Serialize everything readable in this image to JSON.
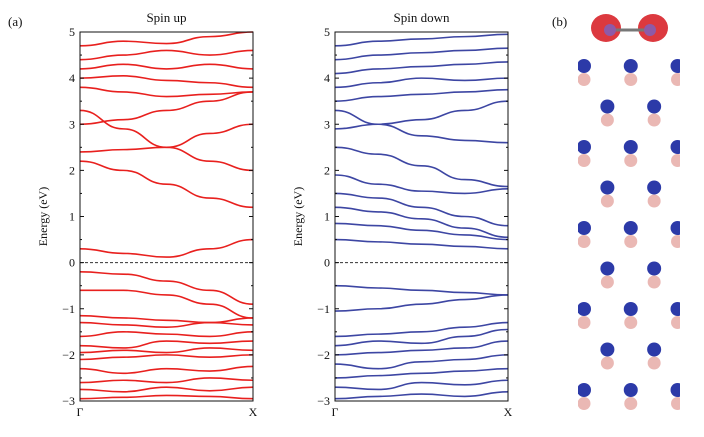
{
  "panel_labels": {
    "a": "(a)",
    "b": "(b)"
  },
  "colors": {
    "spin_up": "#e8201e",
    "spin_down": "#3d46a3",
    "fermi": "#333333",
    "atom_dark": "#2c3aa8",
    "atom_light": "#eab8b4",
    "bond": "#b9b4e0",
    "isosurface": "#d8232a",
    "adatom": "#8e5aa8"
  },
  "chart_data": [
    {
      "type": "line",
      "title": "Spin up",
      "ylabel": "Energy (eV)",
      "xlabel": "",
      "x_ticks": [
        "Γ",
        "X"
      ],
      "y_ticks": [
        "−3",
        "−2",
        "−1",
        "0",
        "1",
        "2",
        "3",
        "4",
        "5"
      ],
      "ylim": [
        -3,
        5
      ],
      "xlim": [
        0,
        1
      ],
      "fermi_level": 0,
      "grid": false,
      "series": [
        {
          "x": [
            0,
            0.25,
            0.5,
            0.75,
            1
          ],
          "y": [
            -2.95,
            -2.92,
            -2.88,
            -2.9,
            -2.95
          ]
        },
        {
          "x": [
            0,
            0.25,
            0.5,
            0.75,
            1
          ],
          "y": [
            -2.75,
            -2.8,
            -2.7,
            -2.78,
            -2.7
          ]
        },
        {
          "x": [
            0,
            0.25,
            0.5,
            0.75,
            1
          ],
          "y": [
            -2.6,
            -2.55,
            -2.6,
            -2.5,
            -2.55
          ]
        },
        {
          "x": [
            0,
            0.25,
            0.5,
            0.75,
            1
          ],
          "y": [
            -2.3,
            -2.4,
            -2.3,
            -2.35,
            -2.25
          ]
        },
        {
          "x": [
            0,
            0.25,
            0.5,
            0.75,
            1
          ],
          "y": [
            -2.1,
            -2.05,
            -2.0,
            -2.05,
            -2.0
          ]
        },
        {
          "x": [
            0,
            0.25,
            0.5,
            0.75,
            1
          ],
          "y": [
            -1.95,
            -1.9,
            -1.95,
            -1.85,
            -1.9
          ]
        },
        {
          "x": [
            0,
            0.25,
            0.5,
            0.75,
            1
          ],
          "y": [
            -1.8,
            -1.85,
            -1.7,
            -1.75,
            -1.7
          ]
        },
        {
          "x": [
            0,
            0.25,
            0.5,
            0.75,
            1
          ],
          "y": [
            -1.6,
            -1.5,
            -1.55,
            -1.6,
            -1.5
          ]
        },
        {
          "x": [
            0,
            0.25,
            0.5,
            0.75,
            1
          ],
          "y": [
            -1.3,
            -1.35,
            -1.4,
            -1.3,
            -1.35
          ]
        },
        {
          "x": [
            0,
            0.25,
            0.5,
            0.75,
            1
          ],
          "y": [
            -1.15,
            -1.2,
            -1.25,
            -1.3,
            -1.2
          ]
        },
        {
          "x": [
            0,
            0.25,
            0.5,
            0.75,
            1
          ],
          "y": [
            -0.6,
            -0.6,
            -0.7,
            -0.9,
            -1.2
          ]
        },
        {
          "x": [
            0,
            0.25,
            0.5,
            0.75,
            1
          ],
          "y": [
            -0.2,
            -0.25,
            -0.4,
            -0.6,
            -0.9
          ]
        },
        {
          "x": [
            0,
            0.25,
            0.5,
            0.75,
            1
          ],
          "y": [
            0.3,
            0.2,
            0.12,
            0.3,
            0.5
          ]
        },
        {
          "x": [
            0,
            0.25,
            0.5,
            0.75,
            1
          ],
          "y": [
            2.2,
            2.0,
            1.7,
            1.4,
            1.2
          ]
        },
        {
          "x": [
            0,
            0.25,
            0.5,
            0.75,
            1
          ],
          "y": [
            3.3,
            2.9,
            2.5,
            2.2,
            2.0
          ]
        },
        {
          "x": [
            0,
            0.25,
            0.5,
            0.75,
            1
          ],
          "y": [
            2.4,
            2.45,
            2.5,
            2.8,
            3.0
          ]
        },
        {
          "x": [
            0,
            0.25,
            0.5,
            0.75,
            1
          ],
          "y": [
            3.0,
            3.1,
            3.3,
            3.5,
            3.7
          ]
        },
        {
          "x": [
            0,
            0.25,
            0.5,
            0.75,
            1
          ],
          "y": [
            3.8,
            3.7,
            3.6,
            3.65,
            3.7
          ]
        },
        {
          "x": [
            0,
            0.25,
            0.5,
            0.75,
            1
          ],
          "y": [
            4.0,
            4.05,
            3.95,
            3.9,
            3.8
          ]
        },
        {
          "x": [
            0,
            0.25,
            0.5,
            0.75,
            1
          ],
          "y": [
            4.2,
            4.3,
            4.2,
            4.3,
            4.2
          ]
        },
        {
          "x": [
            0,
            0.25,
            0.5,
            0.75,
            1
          ],
          "y": [
            4.4,
            4.5,
            4.6,
            4.5,
            4.6
          ]
        },
        {
          "x": [
            0,
            0.25,
            0.5,
            0.75,
            1
          ],
          "y": [
            4.7,
            4.8,
            4.75,
            4.9,
            5.0
          ]
        }
      ]
    },
    {
      "type": "line",
      "title": "Spin down",
      "ylabel": "Energy (eV)",
      "xlabel": "",
      "x_ticks": [
        "Γ",
        "X"
      ],
      "y_ticks": [
        "−3",
        "−2",
        "−1",
        "0",
        "1",
        "2",
        "3",
        "4",
        "5"
      ],
      "ylim": [
        -3,
        5
      ],
      "xlim": [
        0,
        1
      ],
      "fermi_level": 0,
      "grid": false,
      "series": [
        {
          "x": [
            0,
            0.25,
            0.5,
            0.75,
            1
          ],
          "y": [
            -2.95,
            -2.9,
            -2.85,
            -2.9,
            -2.8
          ]
        },
        {
          "x": [
            0,
            0.25,
            0.5,
            0.75,
            1
          ],
          "y": [
            -2.7,
            -2.75,
            -2.6,
            -2.65,
            -2.55
          ]
        },
        {
          "x": [
            0,
            0.25,
            0.5,
            0.75,
            1
          ],
          "y": [
            -2.5,
            -2.45,
            -2.4,
            -2.35,
            -2.3
          ]
        },
        {
          "x": [
            0,
            0.25,
            0.5,
            0.75,
            1
          ],
          "y": [
            -2.2,
            -2.3,
            -2.15,
            -2.1,
            -2.0
          ]
        },
        {
          "x": [
            0,
            0.25,
            0.5,
            0.75,
            1
          ],
          "y": [
            -2.0,
            -1.95,
            -1.9,
            -1.85,
            -1.7
          ]
        },
        {
          "x": [
            0,
            0.25,
            0.5,
            0.75,
            1
          ],
          "y": [
            -1.8,
            -1.7,
            -1.75,
            -1.6,
            -1.45
          ]
        },
        {
          "x": [
            0,
            0.25,
            0.5,
            0.75,
            1
          ],
          "y": [
            -1.6,
            -1.55,
            -1.5,
            -1.4,
            -1.3
          ]
        },
        {
          "x": [
            0,
            0.25,
            0.5,
            0.75,
            1
          ],
          "y": [
            -1.05,
            -1.0,
            -0.9,
            -0.8,
            -0.7
          ]
        },
        {
          "x": [
            0,
            0.25,
            0.5,
            0.75,
            1
          ],
          "y": [
            -0.5,
            -0.55,
            -0.6,
            -0.65,
            -0.7
          ]
        },
        {
          "x": [
            0,
            0.25,
            0.5,
            0.75,
            1
          ],
          "y": [
            0.5,
            0.45,
            0.4,
            0.35,
            0.3
          ]
        },
        {
          "x": [
            0,
            0.25,
            0.5,
            0.75,
            1
          ],
          "y": [
            0.85,
            0.8,
            0.7,
            0.6,
            0.5
          ]
        },
        {
          "x": [
            0,
            0.25,
            0.5,
            0.75,
            1
          ],
          "y": [
            1.2,
            1.1,
            0.95,
            0.75,
            0.55
          ]
        },
        {
          "x": [
            0,
            0.25,
            0.5,
            0.75,
            1
          ],
          "y": [
            1.5,
            1.4,
            1.2,
            1.0,
            0.8
          ]
        },
        {
          "x": [
            0,
            0.25,
            0.5,
            0.75,
            1
          ],
          "y": [
            1.9,
            1.7,
            1.55,
            1.5,
            1.6
          ]
        },
        {
          "x": [
            0,
            0.25,
            0.5,
            0.75,
            1
          ],
          "y": [
            2.5,
            2.35,
            2.1,
            1.8,
            1.65
          ]
        },
        {
          "x": [
            0,
            0.25,
            0.5,
            0.75,
            1
          ],
          "y": [
            3.3,
            3.0,
            2.75,
            2.65,
            2.6
          ]
        },
        {
          "x": [
            0,
            0.25,
            0.5,
            0.75,
            1
          ],
          "y": [
            2.9,
            3.0,
            3.1,
            3.3,
            3.5
          ]
        },
        {
          "x": [
            0,
            0.25,
            0.5,
            0.75,
            1
          ],
          "y": [
            3.5,
            3.6,
            3.65,
            3.7,
            3.75
          ]
        },
        {
          "x": [
            0,
            0.25,
            0.5,
            0.75,
            1
          ],
          "y": [
            3.8,
            3.9,
            4.0,
            3.95,
            4.0
          ]
        },
        {
          "x": [
            0,
            0.25,
            0.5,
            0.75,
            1
          ],
          "y": [
            4.1,
            4.2,
            4.25,
            4.3,
            4.35
          ]
        },
        {
          "x": [
            0,
            0.25,
            0.5,
            0.75,
            1
          ],
          "y": [
            4.4,
            4.5,
            4.55,
            4.6,
            4.65
          ]
        },
        {
          "x": [
            0,
            0.25,
            0.5,
            0.75,
            1
          ],
          "y": [
            4.7,
            4.8,
            4.85,
            4.9,
            4.95
          ]
        }
      ]
    }
  ]
}
